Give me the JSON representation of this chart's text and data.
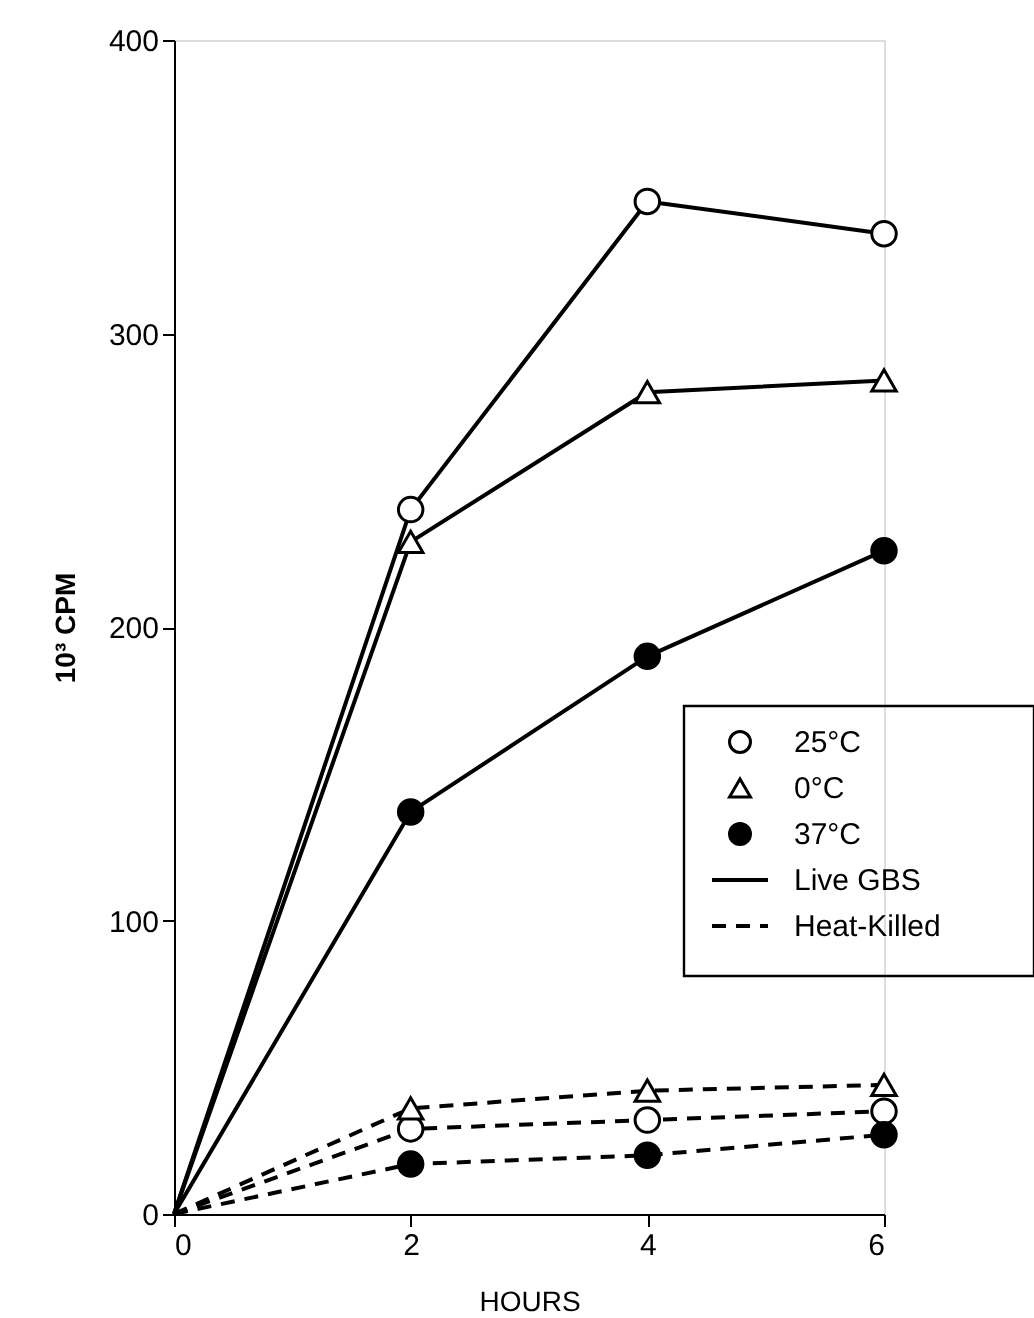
{
  "chart_data": {
    "type": "line",
    "xlabel": "HOURS",
    "ylabel": "10³ CPM",
    "x": [
      0,
      2,
      4,
      6
    ],
    "xlim": [
      0,
      6
    ],
    "xticks": [
      0,
      2,
      4,
      6
    ],
    "ylim": [
      0,
      400
    ],
    "yticks": [
      0,
      100,
      200,
      300,
      400
    ],
    "grid": false,
    "legend": "right",
    "series": [
      {
        "name": "25°C",
        "color": "#000000",
        "colors": [
          null,
          "#ffffff",
          "#ffffff",
          "#ffffff"
        ],
        "marker": "circle",
        "line_style": "solid",
        "values": [
          0,
          240,
          345,
          334
        ]
      },
      {
        "name": "0°C",
        "color": "#000000",
        "colors": [
          null,
          "#ffffff",
          "#ffffff",
          "#ffffff"
        ],
        "marker": "triangle",
        "line_style": "solid",
        "values": [
          0,
          229,
          280,
          284
        ]
      },
      {
        "name": "37°C",
        "color": "#000000",
        "colors": [
          null,
          "#000000",
          "#000000",
          "#000000"
        ],
        "marker": "circle",
        "line_style": "solid",
        "values": [
          0,
          137,
          190,
          226
        ]
      },
      {
        "color": "#000000",
        "colors": [
          null,
          "#ffffff",
          "#ffffff",
          "#ffffff"
        ],
        "marker": "circle",
        "line_style": "dashed",
        "values": [
          0,
          29,
          32,
          35
        ]
      },
      {
        "color": "#000000",
        "colors": [
          null,
          "#ffffff",
          "#ffffff",
          "#ffffff"
        ],
        "marker": "triangle",
        "line_style": "dashed",
        "values": [
          0,
          36,
          42,
          44
        ]
      },
      {
        "color": "#000000",
        "colors": [
          null,
          "#000000",
          "#000000",
          "#000000"
        ],
        "marker": "circle",
        "line_style": "dashed",
        "values": [
          0,
          17,
          20,
          27
        ]
      }
    ],
    "annotations": [
      "Live GBS",
      "Heat-Killed"
    ]
  }
}
